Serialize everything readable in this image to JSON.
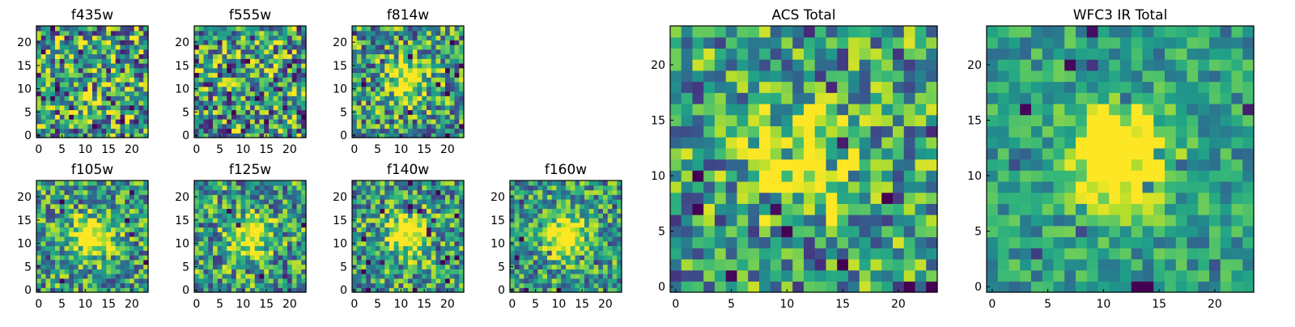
{
  "figure_caption": "",
  "chart_data": [
    {
      "type": "heatmap",
      "title": "f435w",
      "ticks_x": [
        0,
        5,
        10,
        15,
        20
      ],
      "ticks_y": [
        0,
        5,
        10,
        15,
        20
      ],
      "xlim": [
        0,
        24
      ],
      "ylim": [
        0,
        24
      ],
      "grid_size": 24,
      "colormap": "viridis",
      "pattern": "noise",
      "peak": 0.2,
      "noise_level": 1.0,
      "seed": 11
    },
    {
      "type": "heatmap",
      "title": "f555w",
      "ticks_x": [
        0,
        5,
        10,
        15,
        20
      ],
      "ticks_y": [
        0,
        5,
        10,
        15,
        20
      ],
      "xlim": [
        0,
        24
      ],
      "ylim": [
        0,
        24
      ],
      "grid_size": 24,
      "colormap": "viridis",
      "pattern": "noise",
      "peak": 0.2,
      "noise_level": 1.0,
      "seed": 23
    },
    {
      "type": "heatmap",
      "title": "f814w",
      "ticks_x": [
        0,
        5,
        10,
        15,
        20
      ],
      "ticks_y": [
        0,
        5,
        10,
        15,
        20
      ],
      "xlim": [
        0,
        24
      ],
      "ylim": [
        0,
        24
      ],
      "grid_size": 24,
      "colormap": "viridis",
      "pattern": "source",
      "peak": 0.55,
      "noise_level": 0.85,
      "seed": 37
    },
    {
      "type": "heatmap",
      "title": "f105w",
      "ticks_x": [
        0,
        5,
        10,
        15,
        20
      ],
      "ticks_y": [
        0,
        5,
        10,
        15,
        20
      ],
      "xlim": [
        0,
        24
      ],
      "ylim": [
        0,
        24
      ],
      "grid_size": 24,
      "colormap": "viridis",
      "pattern": "source",
      "peak": 0.65,
      "noise_level": 0.75,
      "seed": 41
    },
    {
      "type": "heatmap",
      "title": "f125w",
      "ticks_x": [
        0,
        5,
        10,
        15,
        20
      ],
      "ticks_y": [
        0,
        5,
        10,
        15,
        20
      ],
      "xlim": [
        0,
        24
      ],
      "ylim": [
        0,
        24
      ],
      "grid_size": 24,
      "colormap": "viridis",
      "pattern": "source",
      "peak": 0.6,
      "noise_level": 0.8,
      "seed": 53
    },
    {
      "type": "heatmap",
      "title": "f140w",
      "ticks_x": [
        0,
        5,
        10,
        15,
        20
      ],
      "ticks_y": [
        0,
        5,
        10,
        15,
        20
      ],
      "xlim": [
        0,
        24
      ],
      "ylim": [
        0,
        24
      ],
      "grid_size": 24,
      "colormap": "viridis",
      "pattern": "source",
      "peak": 0.65,
      "noise_level": 0.75,
      "seed": 67
    },
    {
      "type": "heatmap",
      "title": "f160w",
      "ticks_x": [
        0,
        5,
        10,
        15,
        20
      ],
      "ticks_y": [
        0,
        5,
        10,
        15,
        20
      ],
      "xlim": [
        0,
        24
      ],
      "ylim": [
        0,
        24
      ],
      "grid_size": 24,
      "colormap": "viridis",
      "pattern": "source",
      "peak": 0.7,
      "noise_level": 0.7,
      "seed": 79
    },
    {
      "type": "heatmap",
      "title": "ACS Total",
      "ticks_x": [
        0,
        5,
        10,
        15,
        20
      ],
      "ticks_y": [
        0,
        5,
        10,
        15,
        20
      ],
      "xlim": [
        0,
        24
      ],
      "ylim": [
        0,
        24
      ],
      "grid_size": 24,
      "colormap": "viridis",
      "pattern": "source",
      "peak": 0.6,
      "noise_level": 0.8,
      "seed": 83
    },
    {
      "type": "heatmap",
      "title": "WFC3 IR Total",
      "ticks_x": [
        0,
        5,
        10,
        15,
        20
      ],
      "ticks_y": [
        0,
        5,
        10,
        15,
        20
      ],
      "xlim": [
        0,
        24
      ],
      "ylim": [
        0,
        24
      ],
      "grid_size": 24,
      "colormap": "viridis",
      "pattern": "source",
      "peak": 0.85,
      "noise_level": 0.45,
      "seed": 97
    }
  ]
}
